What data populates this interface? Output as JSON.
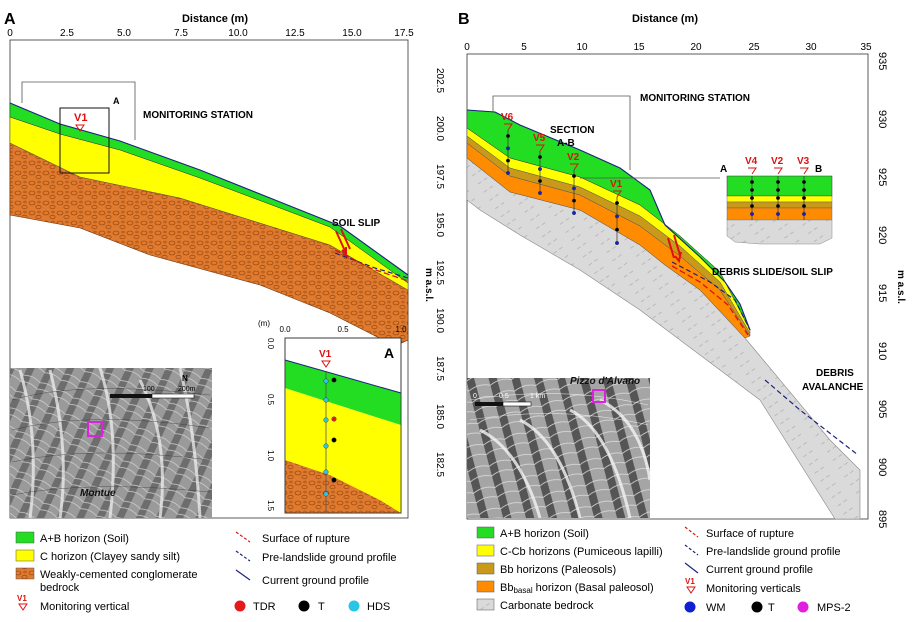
{
  "panelA": {
    "letter": "A",
    "xlabel": "Distance (m)",
    "xticks": [
      "0",
      "2.5",
      "5.0",
      "7.5",
      "10.0",
      "12.5",
      "15.0",
      "17.5"
    ],
    "yticks": [
      "202.5",
      "200.0",
      "197.5",
      "195.0",
      "192.5",
      "190.0",
      "187.5",
      "185.0",
      "182.5"
    ],
    "ylabel": "m a.s.l.",
    "station_label": "MONITORING STATION",
    "section_letter": "A",
    "vertical_label": "V1",
    "slip_label": "SOIL SLIP",
    "inset": {
      "letter": "A",
      "unit": "(m)",
      "xticks": [
        "0.0",
        "0.5",
        "1.0"
      ],
      "yticks": [
        "0.0",
        "0.5",
        "1.0",
        "1.5"
      ],
      "vertical_label": "V1"
    },
    "map": {
      "place": "Montue",
      "scale_a": "100",
      "scale_b": "200m"
    },
    "legend": {
      "soil": "A+B horizon (Soil)",
      "c": "C horizon (Clayey sandy silt)",
      "bedrock_line1": "Weakly-cemented conglomerate",
      "bedrock_line2": "bedrock",
      "monitoring": "Monitoring vertical",
      "rupture": "Surface of rupture",
      "pre": "Pre-landslide ground profile",
      "current": "Current ground profile",
      "tdr": "TDR",
      "t": "T",
      "hds": "HDS",
      "v_symbol": "V1"
    }
  },
  "panelB": {
    "letter": "B",
    "xlabel": "Distance (m)",
    "xticks": [
      "0",
      "5",
      "10",
      "15",
      "20",
      "25",
      "30",
      "35"
    ],
    "yticks": [
      "935",
      "930",
      "925",
      "920",
      "915",
      "910",
      "905",
      "900",
      "895"
    ],
    "ylabel": "m a.s.l.",
    "station_label": "MONITORING STATION",
    "section_label1": "SECTION",
    "section_label2": "A-B",
    "verticals": [
      "V6",
      "V5",
      "V2",
      "V1"
    ],
    "inset_verticals": [
      "V4",
      "V2",
      "V3"
    ],
    "inset_a": "A",
    "inset_b": "B",
    "slide_label": "DEBRIS SLIDE/SOIL SLIP",
    "avalanche1": "DEBRIS",
    "avalanche2": "AVALANCHE",
    "map": {
      "place": "Pizzo d'Alvano",
      "scale_a": "0.5",
      "scale_b": "1 km",
      "scale_0": "0"
    },
    "legend": {
      "soil": "A+B horizon (Soil)",
      "ccb": "C-Cb horizons (Pumiceous lapilli)",
      "bb": "Bb horizons (Paleosols)",
      "bbasal_pre": "Bb",
      "bbasal_sub": "basal",
      "bbasal_post": " horizon (Basal paleosol)",
      "carbonate": "Carbonate bedrock",
      "rupture": "Surface of rupture",
      "pre": "Pre-landslide ground profile",
      "current": "Current ground profile",
      "monitoring": "Monitoring verticals",
      "wm": "WM",
      "t": "T",
      "mps": "MPS-2",
      "v_symbol": "V1"
    }
  },
  "colors": {
    "soil": "#22dd22",
    "c": "#ffff00",
    "bb": "#c99a1a",
    "bbasal": "#ff8c00",
    "conglomerate": "#e07a2e",
    "carbonate": "#d9d9d9",
    "rupture": "#dd1111",
    "pre": "#1a237e",
    "current": "#1a237e",
    "tdr": "#e31a1c",
    "t": "#000000",
    "hds": "#29c5e6",
    "wm": "#1020d0",
    "mps": "#e020e0"
  }
}
